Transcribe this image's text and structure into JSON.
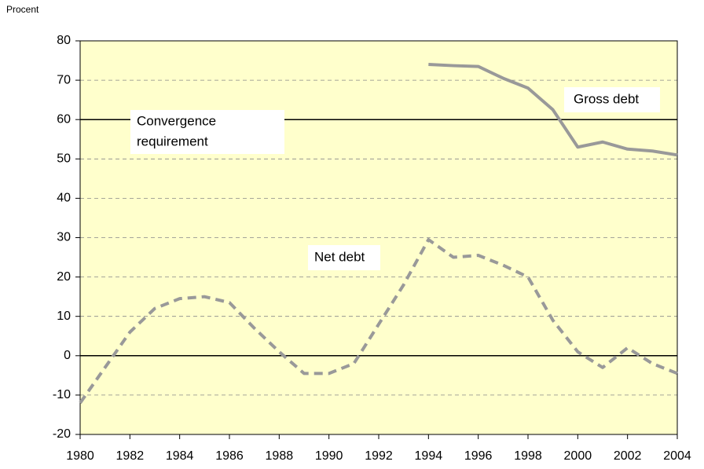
{
  "chart_data": {
    "type": "line",
    "y_label": "Procent",
    "x": [
      1980,
      1981,
      1982,
      1983,
      1984,
      1985,
      1986,
      1987,
      1988,
      1989,
      1990,
      1991,
      1992,
      1993,
      1994,
      1995,
      1996,
      1997,
      1998,
      1999,
      2000,
      2001,
      2002,
      2003,
      2004
    ],
    "series": [
      {
        "name": "Gross debt",
        "color": "#999999",
        "dashed": false,
        "values": [
          null,
          null,
          null,
          null,
          null,
          null,
          null,
          null,
          null,
          null,
          null,
          null,
          null,
          null,
          74,
          73.7,
          73.5,
          70.5,
          68,
          62.5,
          53,
          54.3,
          52.5,
          52,
          51
        ]
      },
      {
        "name": "Net debt",
        "color": "#999999",
        "dashed": true,
        "values": [
          -12,
          -3,
          6,
          12,
          14.5,
          15,
          13.5,
          7,
          1,
          -4.5,
          -4.5,
          -2,
          8,
          18,
          29.5,
          25,
          25.5,
          23,
          20,
          9,
          1,
          -3,
          2,
          -2,
          -4.5
        ]
      }
    ],
    "reference_line": {
      "value": 60,
      "label_lines": [
        "Convergence",
        "requirement"
      ]
    },
    "xlim": [
      1980,
      2004
    ],
    "xticks": [
      1980,
      1982,
      1984,
      1986,
      1988,
      1990,
      1992,
      1994,
      1996,
      1998,
      2000,
      2002,
      2004
    ],
    "ylim": [
      -20,
      80
    ],
    "yticks": [
      -20,
      -10,
      0,
      10,
      20,
      30,
      40,
      50,
      60,
      70,
      80
    ],
    "grid": true,
    "background": "#ffffcc"
  }
}
